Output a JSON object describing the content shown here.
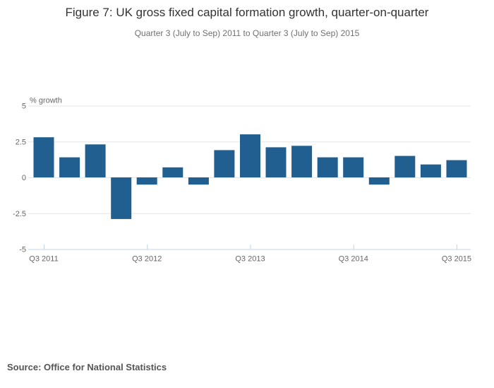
{
  "header": {
    "title": "Figure 7: UK gross fixed capital formation growth, quarter-on-quarter",
    "subtitle": "Quarter 3 (July to Sep) 2011 to Quarter 3 (July to Sep) 2015"
  },
  "footer": {
    "source": "Source: Office for National Statistics"
  },
  "chart_data": {
    "type": "bar",
    "title": "Figure 7: UK gross fixed capital formation growth, quarter-on-quarter",
    "subtitle": "Quarter 3 (July to Sep) 2011 to Quarter 3 (July to Sep) 2015",
    "ylabel": "% growth",
    "xlabel": "",
    "ylim": [
      -5,
      5
    ],
    "grid": true,
    "legend_position": "none",
    "categories": [
      "Q3 2011",
      "Q4 2011",
      "Q1 2012",
      "Q2 2012",
      "Q3 2012",
      "Q4 2012",
      "Q1 2013",
      "Q2 2013",
      "Q3 2013",
      "Q4 2013",
      "Q1 2014",
      "Q2 2014",
      "Q3 2014",
      "Q4 2014",
      "Q1 2015",
      "Q2 2015",
      "Q3 2015"
    ],
    "values": [
      2.8,
      1.4,
      2.3,
      -2.9,
      -0.5,
      0.7,
      -0.5,
      1.9,
      3.0,
      2.1,
      2.2,
      1.4,
      1.4,
      -0.5,
      1.5,
      0.9,
      1.2
    ],
    "x_tick_labels": [
      "Q3 2011",
      "Q3 2012",
      "Q3 2013",
      "Q3 2014",
      "Q3 2015"
    ],
    "x_tick_indices": [
      0,
      4,
      8,
      12,
      16
    ],
    "y_ticks": [
      5,
      2.5,
      0,
      -2.5,
      -5
    ],
    "y_tick_labels": [
      "5",
      "2.5",
      "0",
      "-2.5",
      "-5"
    ],
    "colors": {
      "bar": "#215f90",
      "gridline": "#e6e6e6",
      "axis_line": "#c3d4e2",
      "tick_label": "#666666",
      "axis_title": "#666666"
    }
  }
}
